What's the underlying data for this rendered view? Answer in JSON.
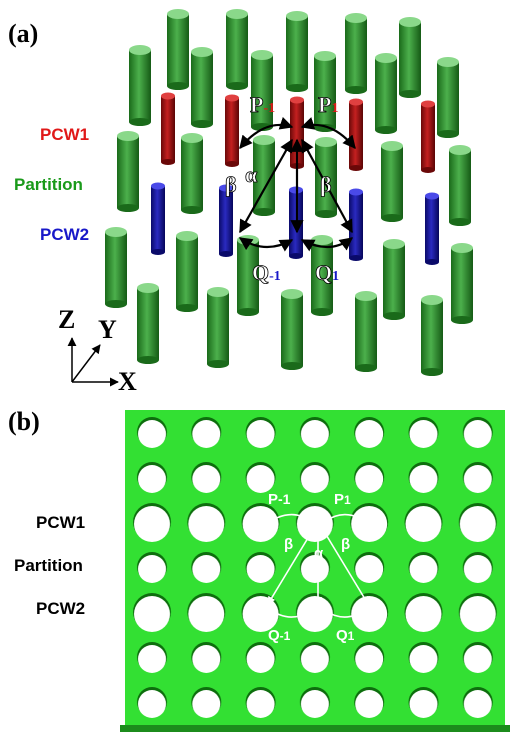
{
  "panel_a": {
    "label": "(a)",
    "rows": {
      "pcw1": "PCW1",
      "partition": "Partition",
      "pcw2": "PCW2"
    },
    "annotations": {
      "p_minus1": {
        "base": "P",
        "sub": "-1"
      },
      "p1": {
        "base": "P",
        "sub": "1"
      },
      "alpha": "α",
      "beta_left": "β",
      "beta_right": "β",
      "q_minus1": {
        "base": "Q",
        "sub": "-1"
      },
      "q1": {
        "base": "Q",
        "sub": "1"
      }
    },
    "axes": {
      "z": "Z",
      "y": "Y",
      "x": "X"
    }
  },
  "panel_b": {
    "label": "(b)",
    "rows": {
      "pcw1": "PCW1",
      "partition": "Partition",
      "pcw2": "PCW2"
    },
    "annotations": {
      "p_minus1": {
        "base": "P",
        "sub": "-1"
      },
      "p1": {
        "base": "P",
        "sub": "1"
      },
      "alpha": "α",
      "beta_left": "β",
      "beta_right": "β",
      "q_minus1": {
        "base": "Q",
        "sub": "-1"
      },
      "q1": {
        "base": "Q",
        "sub": "1"
      }
    }
  }
}
